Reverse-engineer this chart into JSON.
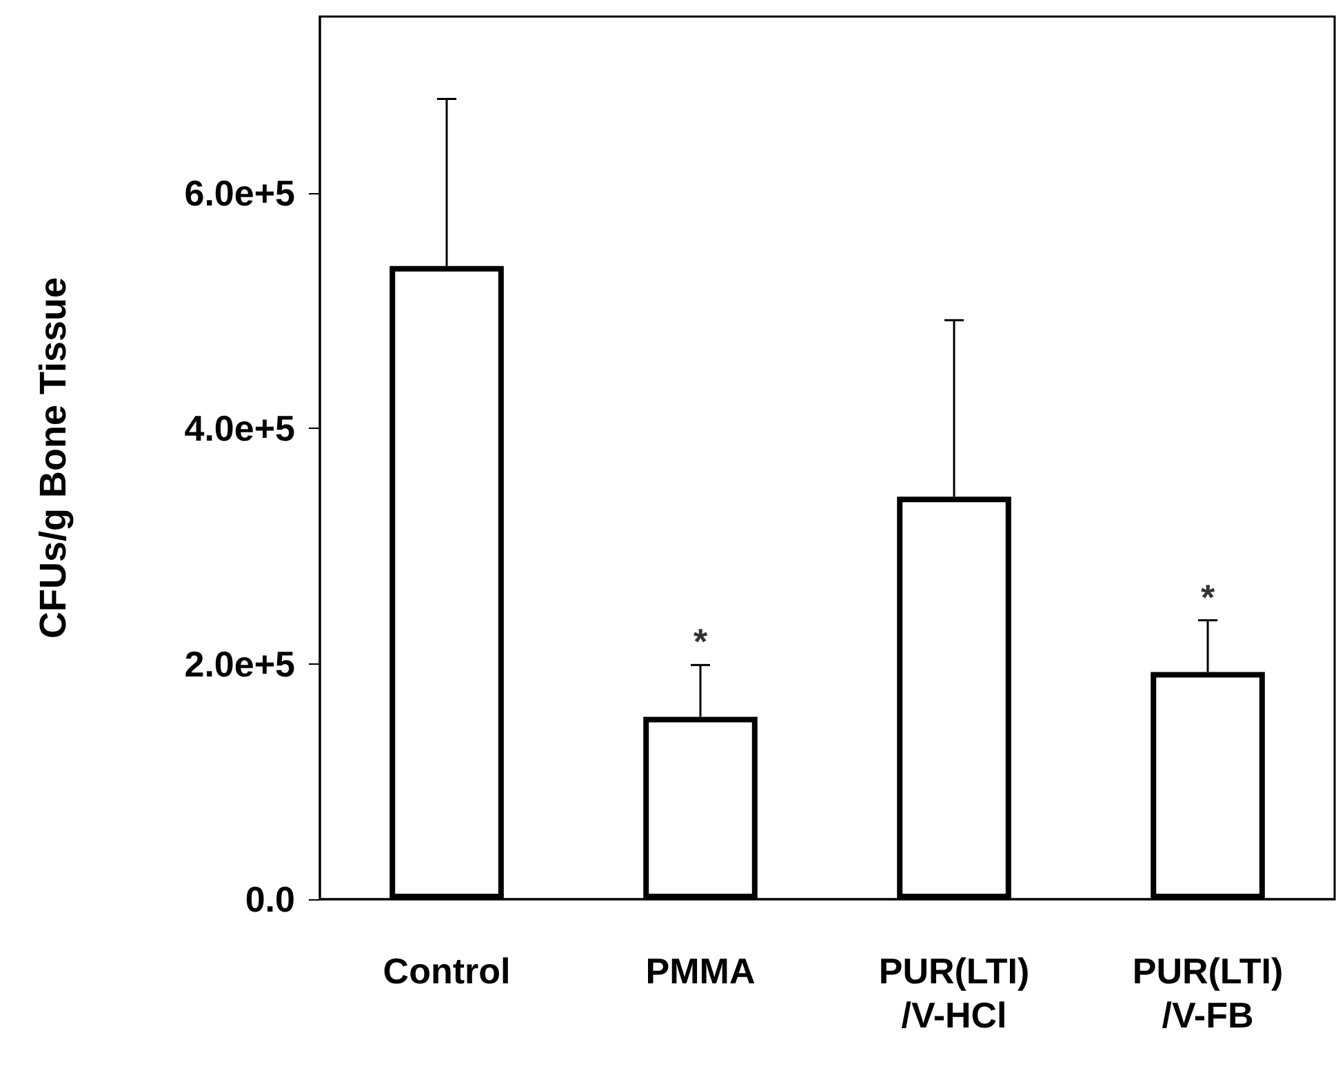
{
  "chart_data": {
    "type": "bar",
    "ylabel": "CFUs/g Bone Tissue",
    "categories": [
      "Control",
      "PMMA",
      "PUR(LTI)\n/V-HCl",
      "PUR(LTI)\n/V-FB"
    ],
    "values": [
      538000,
      155000,
      342000,
      193000
    ],
    "errors": [
      [
        538000,
        680000
      ],
      [
        155000,
        199000
      ],
      [
        342000,
        492000
      ],
      [
        193000,
        237000
      ]
    ],
    "color": "#ffffff",
    "ylim": [
      0,
      750000
    ],
    "yticks": [
      {
        "value": 0,
        "label": "0.0"
      },
      {
        "value": 200000,
        "label": "2.0e+5"
      },
      {
        "value": 400000,
        "label": "4.0e+5"
      },
      {
        "value": 600000,
        "label": "6.0e+5"
      }
    ],
    "annotations": [
      {
        "text": "*",
        "x": "PMMA",
        "y": 199000
      },
      {
        "text": "*",
        "x": "PUR(LTI)\n/V-FB",
        "y": 237000
      }
    ],
    "grid": false
  }
}
